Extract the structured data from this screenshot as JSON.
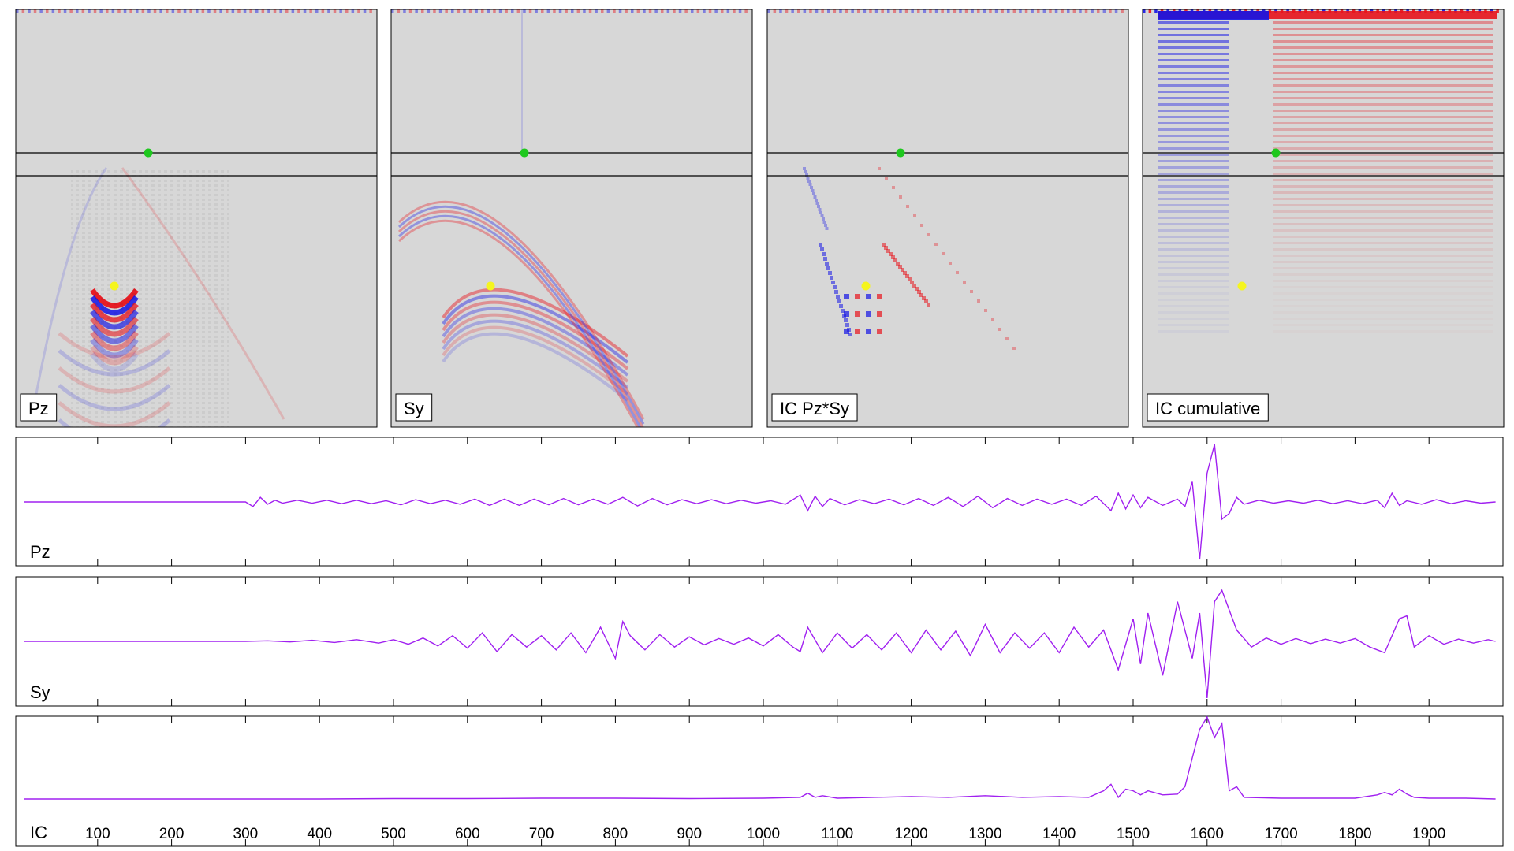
{
  "colors": {
    "background": "#d7d7d7",
    "positive": "#e8141c",
    "negative": "#1414e6",
    "trace": "#a020f0",
    "marker_top": "#1ec81e",
    "marker_point": "#f5f51e",
    "frame": "#000000"
  },
  "panels": [
    {
      "label": "Pz"
    },
    {
      "label": "Sy"
    },
    {
      "label": "IC Pz*Sy"
    },
    {
      "label": "IC cumulative"
    }
  ],
  "chart_data": [
    {
      "type": "line",
      "title": "",
      "xlabel": "",
      "ylabel": "",
      "xlim": [
        0,
        2000
      ],
      "x_ticks": [
        100,
        200,
        300,
        400,
        500,
        600,
        700,
        800,
        900,
        1000,
        1100,
        1200,
        1300,
        1400,
        1500,
        1600,
        1700,
        1800,
        1900
      ],
      "series": [
        {
          "name": "Pz",
          "x": [
            0,
            300,
            310,
            320,
            330,
            340,
            350,
            370,
            390,
            410,
            430,
            450,
            470,
            490,
            510,
            530,
            550,
            570,
            590,
            610,
            630,
            650,
            670,
            690,
            710,
            730,
            750,
            770,
            790,
            810,
            830,
            850,
            870,
            890,
            910,
            930,
            950,
            970,
            990,
            1010,
            1030,
            1050,
            1060,
            1070,
            1080,
            1090,
            1110,
            1130,
            1150,
            1170,
            1190,
            1210,
            1230,
            1250,
            1270,
            1290,
            1310,
            1330,
            1350,
            1370,
            1390,
            1410,
            1430,
            1450,
            1470,
            1480,
            1490,
            1500,
            1510,
            1520,
            1540,
            1560,
            1570,
            1580,
            1590,
            1600,
            1610,
            1620,
            1630,
            1640,
            1650,
            1670,
            1690,
            1710,
            1730,
            1750,
            1770,
            1790,
            1810,
            1830,
            1840,
            1850,
            1860,
            1870,
            1890,
            1910,
            1930,
            1950,
            1970,
            1990
          ],
          "y": [
            0,
            0,
            -0.08,
            0.08,
            -0.04,
            0.03,
            -0.02,
            0.03,
            -0.02,
            0.03,
            -0.03,
            0.03,
            -0.03,
            0.02,
            -0.05,
            0.04,
            -0.03,
            0.03,
            -0.04,
            0.05,
            -0.06,
            0.05,
            -0.06,
            0.05,
            -0.05,
            0.06,
            -0.05,
            0.05,
            -0.04,
            0.08,
            -0.07,
            0.06,
            -0.05,
            0.04,
            -0.03,
            0.04,
            -0.03,
            0.03,
            -0.02,
            0.02,
            -0.04,
            0.12,
            -0.15,
            0.1,
            -0.08,
            0.06,
            -0.05,
            0.04,
            -0.03,
            0.05,
            -0.05,
            0.06,
            -0.06,
            0.08,
            -0.08,
            0.1,
            -0.1,
            0.06,
            -0.06,
            0.05,
            -0.04,
            0.05,
            -0.06,
            0.1,
            -0.15,
            0.15,
            -0.12,
            0.12,
            -0.1,
            0.08,
            -0.06,
            0.05,
            -0.08,
            0.35,
            -1.0,
            0.5,
            1.0,
            -0.3,
            -0.2,
            0.08,
            -0.04,
            0.03,
            -0.02,
            0.02,
            -0.02,
            0.03,
            -0.03,
            0.02,
            -0.03,
            0.03,
            -0.1,
            0.15,
            -0.06,
            0.02,
            -0.04,
            0.04,
            -0.03,
            0.02,
            -0.02,
            0.0
          ]
        },
        {
          "name": "Sy",
          "x": [
            0,
            300,
            330,
            360,
            390,
            420,
            450,
            480,
            500,
            520,
            540,
            560,
            580,
            600,
            620,
            640,
            660,
            680,
            700,
            720,
            740,
            760,
            780,
            800,
            810,
            820,
            840,
            860,
            880,
            900,
            920,
            940,
            960,
            980,
            1000,
            1020,
            1040,
            1050,
            1060,
            1080,
            1100,
            1120,
            1140,
            1160,
            1180,
            1200,
            1220,
            1240,
            1260,
            1280,
            1300,
            1320,
            1340,
            1360,
            1380,
            1400,
            1420,
            1440,
            1460,
            1480,
            1500,
            1510,
            1520,
            1540,
            1560,
            1580,
            1590,
            1600,
            1610,
            1620,
            1640,
            1660,
            1680,
            1700,
            1720,
            1740,
            1760,
            1780,
            1800,
            1820,
            1840,
            1860,
            1870,
            1880,
            1900,
            1920,
            1940,
            1960,
            1980,
            1990
          ],
          "y": [
            0,
            0,
            0.01,
            -0.01,
            0.02,
            -0.02,
            0.03,
            -0.03,
            0.03,
            -0.05,
            0.06,
            -0.08,
            0.1,
            -0.12,
            0.15,
            -0.18,
            0.12,
            -0.1,
            0.1,
            -0.15,
            0.15,
            -0.2,
            0.25,
            -0.3,
            0.35,
            0.1,
            -0.15,
            0.12,
            -0.1,
            0.08,
            -0.06,
            0.05,
            -0.05,
            0.06,
            -0.08,
            0.12,
            -0.1,
            -0.18,
            0.25,
            -0.2,
            0.15,
            -0.12,
            0.12,
            -0.15,
            0.15,
            -0.2,
            0.2,
            -0.15,
            0.18,
            -0.25,
            0.3,
            -0.2,
            0.15,
            -0.12,
            0.15,
            -0.2,
            0.25,
            -0.1,
            0.2,
            -0.5,
            0.4,
            -0.4,
            0.5,
            -0.6,
            0.7,
            -0.3,
            0.5,
            -1.0,
            0.7,
            0.9,
            0.2,
            -0.1,
            0.06,
            -0.05,
            0.05,
            -0.04,
            0.04,
            -0.03,
            0.05,
            -0.1,
            -0.2,
            0.4,
            0.45,
            -0.1,
            0.1,
            -0.05,
            0.04,
            -0.03,
            0.03,
            0.0
          ]
        },
        {
          "name": "IC",
          "x": [
            0,
            300,
            400,
            500,
            600,
            700,
            800,
            900,
            1000,
            1050,
            1060,
            1070,
            1080,
            1100,
            1150,
            1200,
            1250,
            1300,
            1350,
            1400,
            1440,
            1460,
            1470,
            1480,
            1490,
            1500,
            1510,
            1520,
            1540,
            1560,
            1570,
            1580,
            1590,
            1600,
            1610,
            1620,
            1630,
            1640,
            1650,
            1700,
            1800,
            1830,
            1840,
            1850,
            1860,
            1870,
            1880,
            1900,
            1950,
            1990
          ],
          "y": [
            0,
            0,
            0,
            0.005,
            0.005,
            0.01,
            0.01,
            0.005,
            0.01,
            0.02,
            0.07,
            0.02,
            0.04,
            0.01,
            0.02,
            0.03,
            0.02,
            0.04,
            0.02,
            0.03,
            0.02,
            0.1,
            0.18,
            0.02,
            0.12,
            0.1,
            0.05,
            0.1,
            0.05,
            0.06,
            0.15,
            0.5,
            0.85,
            1.0,
            0.75,
            0.92,
            0.1,
            0.15,
            0.02,
            0.01,
            0.01,
            0.05,
            0.08,
            0.05,
            0.12,
            0.06,
            0.02,
            0.01,
            0.01,
            0.0
          ]
        }
      ]
    }
  ],
  "trace_labels": [
    "Pz",
    "Sy",
    "IC"
  ]
}
